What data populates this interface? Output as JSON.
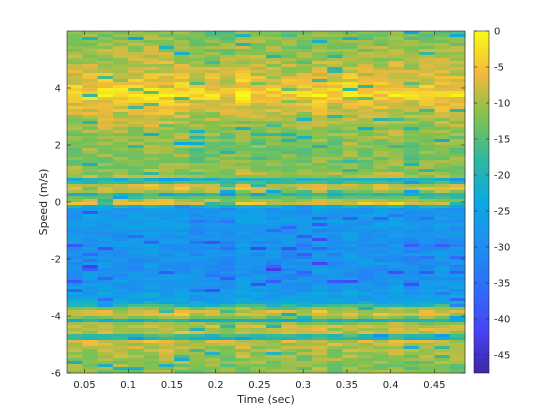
{
  "chart_data": {
    "type": "heatmap",
    "title": "",
    "xlabel": "Time (sec)",
    "ylabel": "Speed (m/s)",
    "xlim": [
      0.03,
      0.485
    ],
    "ylim": [
      -6,
      6
    ],
    "xticks": [
      0.05,
      0.1,
      0.15,
      0.2,
      0.25,
      0.3,
      0.35,
      0.4,
      0.45
    ],
    "xtick_labels": [
      "0.05",
      "0.1",
      "0.15",
      "0.2",
      "0.25",
      "0.3",
      "0.35",
      "0.4",
      "0.45"
    ],
    "yticks": [
      -6,
      -4,
      -2,
      0,
      2,
      4
    ],
    "ytick_labels": [
      "-6",
      "-4",
      "-2",
      "0",
      "2",
      "4"
    ],
    "colorbar": {
      "colormap": "parula",
      "limits": [
        -47.5,
        0
      ],
      "ticks": [
        0,
        -5,
        -10,
        -15,
        -20,
        -25,
        -30,
        -35,
        -40,
        -45
      ],
      "tick_labels": [
        "0",
        "-5",
        "-10",
        "-15",
        "-20",
        "-25",
        "-30",
        "-35",
        "-40",
        "-45"
      ]
    },
    "grid": false,
    "y_profile": [
      {
        "speed": 5.9,
        "value": -13
      },
      {
        "speed": 5.5,
        "value": -11
      },
      {
        "speed": 5.0,
        "value": -10
      },
      {
        "speed": 4.5,
        "value": -8
      },
      {
        "speed": 4.0,
        "value": -5
      },
      {
        "speed": 3.8,
        "value": -3
      },
      {
        "speed": 3.4,
        "value": -7
      },
      {
        "speed": 3.0,
        "value": -9
      },
      {
        "speed": 2.5,
        "value": -11
      },
      {
        "speed": 2.0,
        "value": -12
      },
      {
        "speed": 1.5,
        "value": -12
      },
      {
        "speed": 1.0,
        "value": -11
      },
      {
        "speed": 0.9,
        "value": -9
      },
      {
        "speed": 0.75,
        "value": -24
      },
      {
        "speed": 0.6,
        "value": -8
      },
      {
        "speed": 0.4,
        "value": -8
      },
      {
        "speed": 0.25,
        "value": -20
      },
      {
        "speed": 0.1,
        "value": -11
      },
      {
        "speed": -0.05,
        "value": -6
      },
      {
        "speed": -0.2,
        "value": -28
      },
      {
        "speed": -0.5,
        "value": -27
      },
      {
        "speed": -1.0,
        "value": -28
      },
      {
        "speed": -1.5,
        "value": -29
      },
      {
        "speed": -2.0,
        "value": -29
      },
      {
        "speed": -2.5,
        "value": -29
      },
      {
        "speed": -3.0,
        "value": -28
      },
      {
        "speed": -3.5,
        "value": -25
      },
      {
        "speed": -3.8,
        "value": -9
      },
      {
        "speed": -4.0,
        "value": -7
      },
      {
        "speed": -4.15,
        "value": -22
      },
      {
        "speed": -4.3,
        "value": -8
      },
      {
        "speed": -4.6,
        "value": -9
      },
      {
        "speed": -4.75,
        "value": -24
      },
      {
        "speed": -4.9,
        "value": -8
      },
      {
        "speed": -5.2,
        "value": -10
      },
      {
        "speed": -5.6,
        "value": -11
      },
      {
        "speed": -6.0,
        "value": -12
      }
    ]
  }
}
